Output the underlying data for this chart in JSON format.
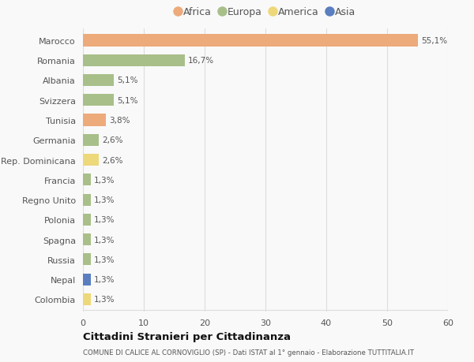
{
  "countries": [
    "Marocco",
    "Romania",
    "Albania",
    "Svizzera",
    "Tunisia",
    "Germania",
    "Rep. Dominicana",
    "Francia",
    "Regno Unito",
    "Polonia",
    "Spagna",
    "Russia",
    "Nepal",
    "Colombia"
  ],
  "values": [
    55.1,
    16.7,
    5.1,
    5.1,
    3.8,
    2.6,
    2.6,
    1.3,
    1.3,
    1.3,
    1.3,
    1.3,
    1.3,
    1.3
  ],
  "labels": [
    "55,1%",
    "16,7%",
    "5,1%",
    "5,1%",
    "3,8%",
    "2,6%",
    "2,6%",
    "1,3%",
    "1,3%",
    "1,3%",
    "1,3%",
    "1,3%",
    "1,3%",
    "1,3%"
  ],
  "continent": [
    "Africa",
    "Europa",
    "Europa",
    "Europa",
    "Africa",
    "Europa",
    "America",
    "Europa",
    "Europa",
    "Europa",
    "Europa",
    "Europa",
    "Asia",
    "America"
  ],
  "colors": {
    "Africa": "#EDAA7A",
    "Europa": "#A8BF8A",
    "America": "#EDD87A",
    "Asia": "#5A7EC0"
  },
  "legend_order": [
    "Africa",
    "Europa",
    "America",
    "Asia"
  ],
  "title": "Cittadini Stranieri per Cittadinanza",
  "subtitle": "COMUNE DI CALICE AL CORNOVIGLIO (SP) - Dati ISTAT al 1° gennaio - Elaborazione TUTTITALIA.IT",
  "xlim": [
    0,
    60
  ],
  "xticks": [
    0,
    10,
    20,
    30,
    40,
    50,
    60
  ],
  "background_color": "#f9f9f9",
  "bar_height": 0.6,
  "grid_color": "#dddddd",
  "text_color": "#555555",
  "title_color": "#111111"
}
